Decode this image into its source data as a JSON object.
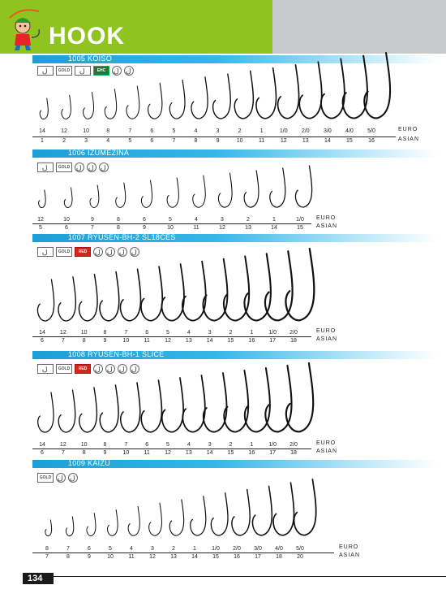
{
  "header": {
    "title": "HOOK",
    "colors": {
      "accent": "#8fc31f",
      "panel": "#c8c9ca",
      "section_bar": "#1c9fd6"
    }
  },
  "page_number": "134",
  "row_labels": {
    "euro": "EURO",
    "asian": "ASIAN"
  },
  "sections": [
    {
      "title": "1005 KOISO",
      "icons": [
        "ring-eye-icon",
        "gold-icon",
        "sharpened-icon",
        "ehc-badge-icon",
        "spade-icon",
        "barb-icon"
      ],
      "icon_texts": [
        "",
        "GOLD",
        "",
        "EHC",
        "",
        ""
      ],
      "euro": [
        "14",
        "12",
        "10",
        "8",
        "7",
        "6",
        "5",
        "4",
        "3",
        "2",
        "1",
        "1/0",
        "2/0",
        "3/0",
        "4/0",
        "5/0"
      ],
      "asian": [
        "1",
        "2",
        "3",
        "4",
        "5",
        "6",
        "7",
        "8",
        "9",
        "10",
        "11",
        "12",
        "13",
        "14",
        "15",
        "16"
      ]
    },
    {
      "title": "1006 IZUMEZINA",
      "icons": [
        "ring-eye-icon",
        "gold-icon",
        "spade-icon",
        "barb-icon",
        "point-icon"
      ],
      "icon_texts": [
        "",
        "GOLD",
        "",
        "",
        ""
      ],
      "euro": [
        "12",
        "10",
        "9",
        "8",
        "6",
        "5",
        "4",
        "3",
        "2",
        "1",
        "1/0"
      ],
      "asian": [
        "5",
        "6",
        "7",
        "8",
        "9",
        "10",
        "11",
        "12",
        "13",
        "14",
        "15"
      ]
    },
    {
      "title": "1007 RYUSEN-BH-2 SL18CES",
      "icons": [
        "ring-eye-icon",
        "gold-icon",
        "red-badge-icon",
        "spade-icon",
        "barb-icon",
        "point-icon",
        "shank-icon"
      ],
      "icon_texts": [
        "",
        "GOLD",
        "RED",
        "",
        "",
        "",
        ""
      ],
      "euro": [
        "14",
        "12",
        "10",
        "8",
        "7",
        "6",
        "5",
        "4",
        "3",
        "2",
        "1",
        "1/0",
        "2/0"
      ],
      "asian": [
        "6",
        "7",
        "8",
        "9",
        "10",
        "11",
        "12",
        "13",
        "14",
        "15",
        "16",
        "17",
        "18"
      ]
    },
    {
      "title": "1008 RYUSEN-BH-1 SLICE",
      "icons": [
        "ring-eye-icon",
        "gold-icon",
        "red-badge-icon",
        "spade-icon",
        "barb-icon",
        "point-icon",
        "shank-icon"
      ],
      "icon_texts": [
        "",
        "GOLD",
        "RED",
        "",
        "",
        "",
        ""
      ],
      "euro": [
        "14",
        "12",
        "10",
        "8",
        "7",
        "6",
        "5",
        "4",
        "3",
        "2",
        "1",
        "1/0",
        "2/0"
      ],
      "asian": [
        "6",
        "7",
        "8",
        "9",
        "10",
        "11",
        "12",
        "13",
        "14",
        "15",
        "16",
        "17",
        "18"
      ]
    },
    {
      "title": "1009 KAIZU",
      "icons": [
        "gold-icon",
        "spade-icon",
        "barb-icon"
      ],
      "icon_texts": [
        "GOLD",
        "",
        ""
      ],
      "euro": [
        "8",
        "7",
        "6",
        "5",
        "4",
        "3",
        "2",
        "1",
        "1/0",
        "2/0",
        "3/0",
        "4/0",
        "5/0"
      ],
      "asian": [
        "7",
        "8",
        "9",
        "10",
        "11",
        "12",
        "13",
        "14",
        "15",
        "16",
        "17",
        "18",
        "20"
      ]
    }
  ]
}
